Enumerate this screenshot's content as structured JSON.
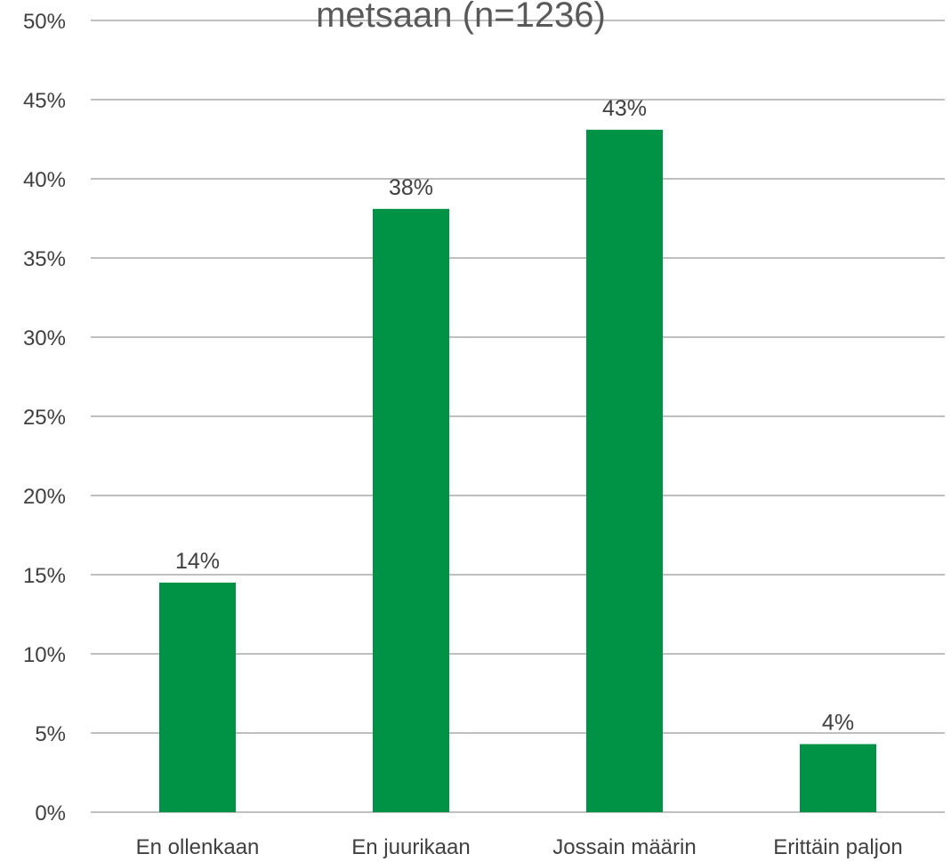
{
  "chart_data": {
    "type": "bar",
    "title": "metsaan (n=1236)",
    "categories": [
      "En ollenkaan",
      "En juurikaan",
      "Jossain määrin",
      "Erittäin paljon"
    ],
    "values": [
      14.5,
      38.1,
      43.1,
      4.3
    ],
    "data_labels": [
      "14%",
      "38%",
      "43%",
      "4%"
    ],
    "ylim": [
      0,
      50
    ],
    "yticks": [
      0,
      5,
      10,
      15,
      20,
      25,
      30,
      35,
      40,
      45,
      50
    ],
    "ytick_labels": [
      "0%",
      "5%",
      "10%",
      "15%",
      "20%",
      "25%",
      "30%",
      "35%",
      "40%",
      "45%",
      "50%"
    ],
    "xlabel": "",
    "ylabel": "",
    "grid": true,
    "bar_color": "#009245",
    "grid_color": "#bfbfbf"
  }
}
